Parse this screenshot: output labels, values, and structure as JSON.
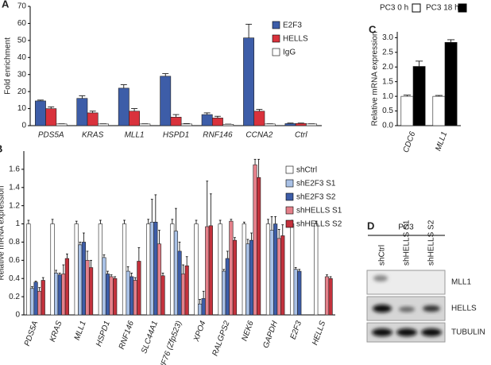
{
  "chart_data": [
    {
      "type": "bar",
      "label": "A",
      "y_label": "Fold enrichment",
      "categories": [
        "PDS5A",
        "KRAS",
        "MLL1",
        "HSPD1",
        "RNF146",
        "CCNA2",
        "Ctrl"
      ],
      "series": [
        {
          "name": "E2F3",
          "color": "#3d5da8",
          "values": [
            14.5,
            16,
            22,
            29,
            6.5,
            51.5,
            1.2
          ],
          "errors": [
            0.5,
            1.5,
            2,
            1.5,
            1,
            8,
            0.3
          ]
        },
        {
          "name": "HELLS",
          "color": "#d9323c",
          "values": [
            10,
            7.5,
            8.5,
            5,
            4.5,
            8.5,
            1.3
          ],
          "errors": [
            1,
            1,
            1.5,
            1.5,
            1,
            1,
            0.2
          ]
        },
        {
          "name": "IgG",
          "color": "#ffffff",
          "values": [
            1,
            1,
            1,
            1,
            0.8,
            1,
            1
          ],
          "errors": [
            0.1,
            0.1,
            0.1,
            0.2,
            0.1,
            0.1,
            0.1
          ]
        }
      ],
      "ylim": [
        0,
        70
      ],
      "yticks": [
        0,
        10,
        20,
        30,
        40,
        50,
        60,
        70
      ],
      "legend": "upper right"
    },
    {
      "type": "bar",
      "label": "B",
      "y_label": "Relative mRNA expression",
      "categories": [
        "PDS5A",
        "KRAS",
        "MLL1",
        "HSPD1",
        "RNF146",
        "SLC44A1",
        "ZNF76 (Zfp523)",
        "XPO4",
        "RALGPS2",
        "NEK6",
        "GAPDH",
        "E2F3",
        "HELLS"
      ],
      "series": [
        {
          "name": "shCtrl",
          "color": "#ffffff",
          "values": [
            1,
            1,
            1,
            1,
            1,
            1,
            1,
            1,
            1,
            1,
            1,
            1,
            1
          ],
          "errors": [
            0.04,
            0.05,
            0.03,
            0.04,
            0.04,
            0.05,
            0.05,
            0.04,
            0.04,
            0.02,
            0.05,
            0.04,
            0.03
          ]
        },
        {
          "name": "shE2F3 S1",
          "color": "#a9c1e6",
          "values": [
            0.29,
            0.46,
            0.77,
            0.63,
            0.48,
            1.02,
            0.92,
            0.12,
            0.48,
            0.78,
            0.93,
            0.5,
            null
          ],
          "errors": [
            0.02,
            0.03,
            0.03,
            0.03,
            0.05,
            0.25,
            0.25,
            0.05,
            0.02,
            0.05,
            0.15,
            0.02,
            null
          ]
        },
        {
          "name": "shE2F3 S2",
          "color": "#3d5da8",
          "values": [
            0.36,
            0.44,
            0.8,
            0.45,
            0.42,
            1.02,
            0.7,
            0.18,
            0.62,
            0.82,
            1.0,
            0.48,
            null
          ],
          "errors": [
            0.01,
            0.02,
            0.1,
            0.03,
            0.04,
            0.3,
            0.1,
            0.08,
            0.08,
            0.08,
            0.08,
            0.02,
            null
          ]
        },
        {
          "name": "shHELLS S1",
          "color": "#e4808a",
          "values": [
            0.26,
            0.45,
            0.6,
            0.42,
            0.38,
            0.78,
            0.45,
            0.97,
            1.03,
            1.65,
            0.84,
            null,
            0.42
          ],
          "errors": [
            0.04,
            0.1,
            0.1,
            0.02,
            0.03,
            0.15,
            0.1,
            0.5,
            0.02,
            0.06,
            0.1,
            null,
            0.02
          ]
        },
        {
          "name": "shHELLS S2",
          "color": "#c3313c",
          "values": [
            0.38,
            0.62,
            0.52,
            0.4,
            0.59,
            0.43,
            0.54,
            0.98,
            0.82,
            1.51,
            0.87,
            null,
            0.4
          ],
          "errors": [
            0.03,
            0.05,
            0.08,
            0.02,
            0.15,
            0.03,
            0.1,
            0.35,
            0.03,
            0.2,
            0.12,
            null,
            0.02
          ]
        }
      ],
      "ylim": [
        0,
        1.8
      ],
      "yticks": [
        0,
        0.2,
        0.4,
        0.6,
        0.8,
        1,
        1.2,
        1.4,
        1.6
      ],
      "legend": "upper right"
    },
    {
      "type": "bar",
      "label": "C",
      "y_label": "Relative mRNA expression",
      "categories": [
        "CDC6",
        "MLL1"
      ],
      "series": [
        {
          "name": "PC3 0 h",
          "color": "#ffffff",
          "values": [
            1,
            1
          ],
          "errors": [
            0.04,
            0.03
          ]
        },
        {
          "name": "PC3 18 h",
          "color": "#000000",
          "values": [
            2.02,
            2.84
          ],
          "errors": [
            0.18,
            0.09
          ]
        }
      ],
      "ylim": [
        0,
        3.2
      ],
      "yticks": [
        {
          "value": 0,
          "label": "0.0"
        },
        0.5,
        {
          "value": 1,
          "label": "1.0"
        },
        1.5,
        {
          "value": 2,
          "label": "2.0"
        },
        2.5,
        {
          "value": 3,
          "label": "3.0"
        }
      ],
      "legend": "top"
    }
  ],
  "blot": {
    "label": "D",
    "cell_line": "PC3",
    "lanes": [
      "shCtrl",
      "shHELLS S1",
      "shHELLS S2"
    ],
    "rows": [
      "MLL1",
      "HELLS",
      "TUBULIN"
    ]
  }
}
